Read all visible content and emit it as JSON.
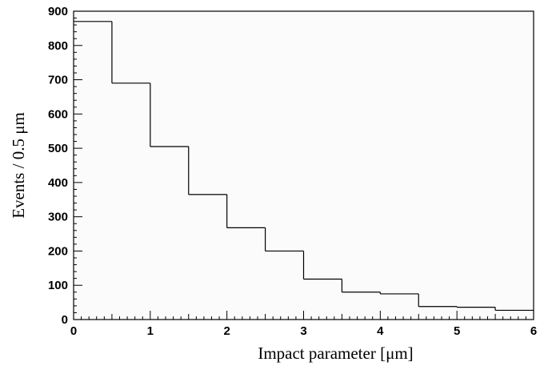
{
  "chart_data": {
    "type": "bar",
    "style": "step-histogram",
    "xlabel": "Impact parameter [μm]",
    "ylabel": "Events / 0.5 μm",
    "xlim": [
      0,
      6
    ],
    "ylim": [
      0,
      900
    ],
    "x_ticks": [
      "0",
      "1",
      "2",
      "3",
      "4",
      "5",
      "6"
    ],
    "y_ticks": [
      "0",
      "100",
      "200",
      "300",
      "400",
      "500",
      "600",
      "700",
      "800",
      "900"
    ],
    "bin_edges": [
      0,
      0.5,
      1.0,
      1.5,
      2.0,
      2.5,
      3.0,
      3.5,
      4.0,
      4.5,
      5.0,
      5.5,
      6.0
    ],
    "values": [
      870,
      690,
      505,
      365,
      268,
      200,
      118,
      80,
      75,
      38,
      36,
      27
    ],
    "grid": false,
    "colors": {
      "plot_background": "#fbfbfb",
      "line": "#000000"
    }
  }
}
